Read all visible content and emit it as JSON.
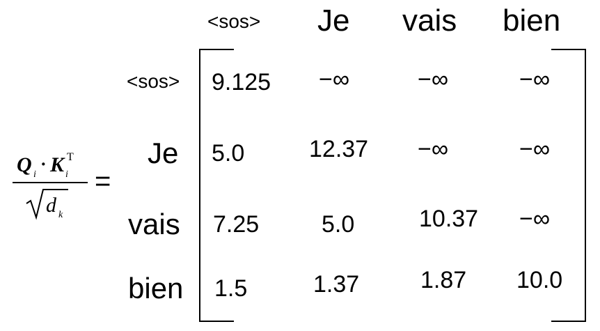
{
  "columns": [
    "<sos>",
    "Je",
    "vais",
    "bien"
  ],
  "rows": [
    "<sos>",
    "Je",
    "vais",
    "bien"
  ],
  "formula": {
    "numerator_q": "Q",
    "numerator_q_sub": "i",
    "dot": "·",
    "numerator_k": "K",
    "numerator_k_sub": "i",
    "numerator_k_sup": "T",
    "denominator_d": "d",
    "denominator_d_sub": "k",
    "equals": "="
  },
  "matrix": [
    [
      "9.125",
      "−∞",
      "−∞",
      "−∞"
    ],
    [
      "5.0",
      "12.37",
      "−∞",
      "−∞"
    ],
    [
      "7.25",
      "5.0",
      "10.37",
      "−∞"
    ],
    [
      "1.5",
      "1.37",
      "1.87",
      "10.0"
    ]
  ]
}
